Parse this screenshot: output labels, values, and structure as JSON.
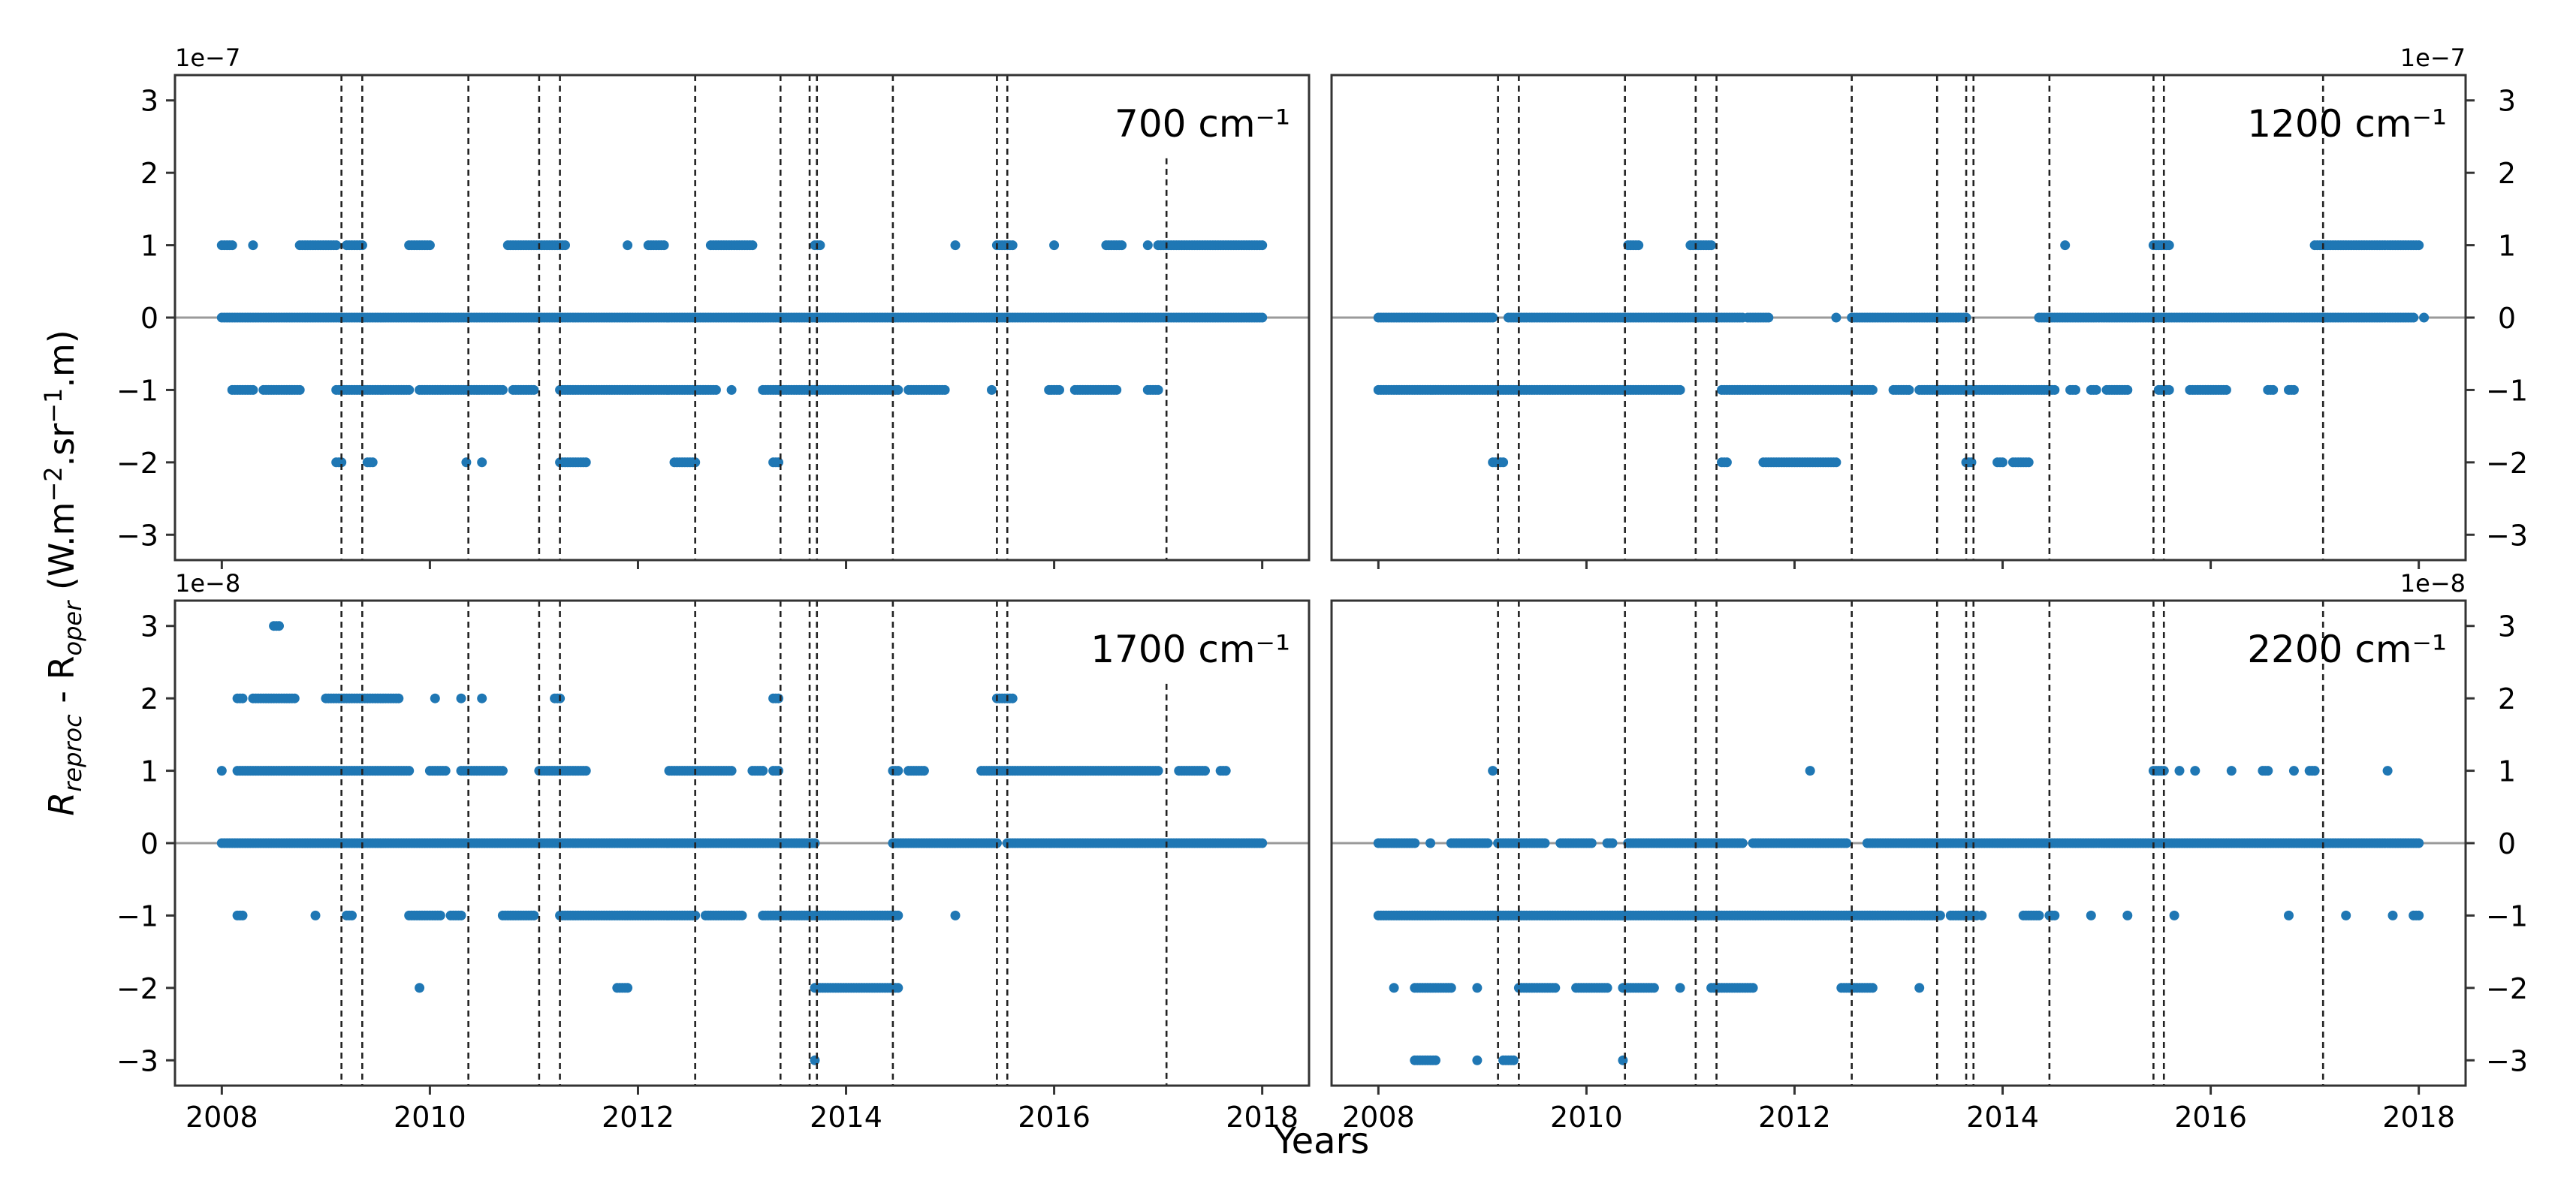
{
  "figure": {
    "xlabel": "Years",
    "ylabel_main": "R",
    "ylabel_sub1": "reproc",
    "ylabel_mid": " - R",
    "ylabel_sub2": "oper",
    "ylabel_units_1": " (W.m",
    "ylabel_sup1": "−2",
    "ylabel_units_2": ".sr",
    "ylabel_sup2": "−1",
    "ylabel_units_3": ".m)",
    "marker_color": "#1f77b4",
    "event_years": [
      2009.15,
      2009.35,
      2010.37,
      2011.05,
      2011.25,
      2012.55,
      2013.37,
      2013.65,
      2013.72,
      2014.45,
      2015.45,
      2015.55,
      2017.08
    ]
  },
  "chart_data": [
    {
      "type": "scatter",
      "title": "700 cm⁻¹",
      "exponent": "1e−7",
      "xlim": [
        2007.55,
        2018.45
      ],
      "ylim": [
        -3.35,
        3.35
      ],
      "xticks": [
        "2008",
        "2010",
        "2012",
        "2014",
        "2016",
        "2018"
      ],
      "yticks": [
        "3",
        "2",
        "1",
        "0",
        "−1",
        "−2",
        "−3"
      ],
      "levels": [
        {
          "y": 1,
          "ranges": [
            [
              2008.0,
              2008.1
            ],
            [
              2008.3,
              2008.3
            ],
            [
              2008.75,
              2009.1
            ],
            [
              2009.2,
              2009.35
            ],
            [
              2009.8,
              2010.0
            ],
            [
              2010.75,
              2011.3
            ],
            [
              2011.9,
              2011.9
            ],
            [
              2012.1,
              2012.25
            ],
            [
              2012.7,
              2013.1
            ],
            [
              2013.7,
              2013.75
            ],
            [
              2015.05,
              2015.05
            ],
            [
              2015.45,
              2015.6
            ],
            [
              2016.0,
              2016.0
            ],
            [
              2016.5,
              2016.65
            ],
            [
              2016.9,
              2016.9
            ],
            [
              2017.0,
              2018.0
            ]
          ]
        },
        {
          "y": 0,
          "ranges": [
            [
              2008.0,
              2018.0
            ]
          ]
        },
        {
          "y": -1,
          "ranges": [
            [
              2008.1,
              2008.3
            ],
            [
              2008.4,
              2008.75
            ],
            [
              2009.1,
              2009.8
            ],
            [
              2009.9,
              2010.7
            ],
            [
              2010.8,
              2011.0
            ],
            [
              2011.25,
              2012.75
            ],
            [
              2012.9,
              2012.9
            ],
            [
              2013.2,
              2014.5
            ],
            [
              2014.6,
              2014.95
            ],
            [
              2015.4,
              2015.4
            ],
            [
              2015.95,
              2016.05
            ],
            [
              2016.2,
              2016.6
            ],
            [
              2016.9,
              2017.0
            ]
          ]
        },
        {
          "y": -2,
          "ranges": [
            [
              2009.1,
              2009.15
            ],
            [
              2009.4,
              2009.45
            ],
            [
              2010.35,
              2010.35
            ],
            [
              2010.5,
              2010.5
            ],
            [
              2011.25,
              2011.5
            ],
            [
              2012.35,
              2012.55
            ],
            [
              2013.3,
              2013.35
            ]
          ]
        }
      ]
    },
    {
      "type": "scatter",
      "title": "1200 cm⁻¹",
      "exponent": "1e−7",
      "xlim": [
        2007.55,
        2018.45
      ],
      "ylim": [
        -3.35,
        3.35
      ],
      "xticks": [
        "2008",
        "2010",
        "2012",
        "2014",
        "2016",
        "2018"
      ],
      "yticks": [
        "3",
        "2",
        "1",
        "0",
        "−1",
        "−2",
        "−3"
      ],
      "levels": [
        {
          "y": 1,
          "ranges": [
            [
              2010.4,
              2010.5
            ],
            [
              2011.0,
              2011.2
            ],
            [
              2014.6,
              2014.6
            ],
            [
              2015.45,
              2015.6
            ],
            [
              2017.0,
              2018.0
            ]
          ]
        },
        {
          "y": 0,
          "ranges": [
            [
              2008.0,
              2009.1
            ],
            [
              2009.25,
              2011.5
            ],
            [
              2011.55,
              2011.75
            ],
            [
              2012.4,
              2012.4
            ],
            [
              2012.55,
              2013.65
            ],
            [
              2014.35,
              2017.95
            ],
            [
              2018.05,
              2018.05
            ]
          ]
        },
        {
          "y": -1,
          "ranges": [
            [
              2008.0,
              2010.9
            ],
            [
              2011.3,
              2012.75
            ],
            [
              2012.95,
              2013.1
            ],
            [
              2013.2,
              2014.5
            ],
            [
              2014.65,
              2014.7
            ],
            [
              2014.85,
              2014.9
            ],
            [
              2015.0,
              2015.2
            ],
            [
              2015.5,
              2015.6
            ],
            [
              2015.8,
              2016.15
            ],
            [
              2016.55,
              2016.6
            ],
            [
              2016.75,
              2016.8
            ]
          ]
        },
        {
          "y": -2,
          "ranges": [
            [
              2009.1,
              2009.2
            ],
            [
              2011.3,
              2011.35
            ],
            [
              2011.7,
              2012.4
            ],
            [
              2013.65,
              2013.7
            ],
            [
              2013.95,
              2014.0
            ],
            [
              2014.1,
              2014.25
            ]
          ]
        }
      ]
    },
    {
      "type": "scatter",
      "title": "1700 cm⁻¹",
      "exponent": "1e−8",
      "xlim": [
        2007.55,
        2018.45
      ],
      "ylim": [
        -3.35,
        3.35
      ],
      "xticks": [
        "2008",
        "2010",
        "2012",
        "2014",
        "2016",
        "2018"
      ],
      "yticks": [
        "3",
        "2",
        "1",
        "0",
        "−1",
        "−2",
        "−3"
      ],
      "levels": [
        {
          "y": 3,
          "ranges": [
            [
              2008.5,
              2008.55
            ]
          ]
        },
        {
          "y": 2,
          "ranges": [
            [
              2008.15,
              2008.2
            ],
            [
              2008.3,
              2008.7
            ],
            [
              2009.0,
              2009.7
            ],
            [
              2010.05,
              2010.05
            ],
            [
              2010.3,
              2010.3
            ],
            [
              2010.5,
              2010.5
            ],
            [
              2011.2,
              2011.25
            ],
            [
              2013.3,
              2013.35
            ],
            [
              2015.45,
              2015.6
            ]
          ]
        },
        {
          "y": 1,
          "ranges": [
            [
              2008.0,
              2008.0
            ],
            [
              2008.15,
              2009.8
            ],
            [
              2010.0,
              2010.15
            ],
            [
              2010.3,
              2010.7
            ],
            [
              2011.05,
              2011.5
            ],
            [
              2012.3,
              2012.9
            ],
            [
              2013.1,
              2013.2
            ],
            [
              2013.3,
              2013.35
            ],
            [
              2014.45,
              2014.5
            ],
            [
              2014.6,
              2014.75
            ],
            [
              2015.3,
              2017.0
            ],
            [
              2017.2,
              2017.45
            ],
            [
              2017.6,
              2017.65
            ]
          ]
        },
        {
          "y": 0,
          "ranges": [
            [
              2008.0,
              2013.7
            ],
            [
              2014.45,
              2015.45
            ],
            [
              2015.55,
              2018.0
            ]
          ]
        },
        {
          "y": -1,
          "ranges": [
            [
              2008.15,
              2008.2
            ],
            [
              2008.9,
              2008.9
            ],
            [
              2009.2,
              2009.25
            ],
            [
              2009.8,
              2010.1
            ],
            [
              2010.2,
              2010.3
            ],
            [
              2010.7,
              2011.0
            ],
            [
              2011.25,
              2012.55
            ],
            [
              2012.65,
              2013.0
            ],
            [
              2013.2,
              2014.5
            ],
            [
              2015.05,
              2015.05
            ]
          ]
        },
        {
          "y": -2,
          "ranges": [
            [
              2009.9,
              2009.9
            ],
            [
              2011.8,
              2011.9
            ],
            [
              2013.7,
              2014.5
            ]
          ]
        },
        {
          "y": -3,
          "ranges": [
            [
              2013.7,
              2013.7
            ]
          ]
        }
      ]
    },
    {
      "type": "scatter",
      "title": "2200 cm⁻¹",
      "exponent": "1e−8",
      "xlim": [
        2007.55,
        2018.45
      ],
      "ylim": [
        -3.35,
        3.35
      ],
      "xticks": [
        "2008",
        "2010",
        "2012",
        "2014",
        "2016",
        "2018"
      ],
      "yticks": [
        "3",
        "2",
        "1",
        "0",
        "−1",
        "−2",
        "−3"
      ],
      "levels": [
        {
          "y": 1,
          "ranges": [
            [
              2009.1,
              2009.1
            ],
            [
              2012.15,
              2012.15
            ],
            [
              2015.45,
              2015.55
            ],
            [
              2015.7,
              2015.7
            ],
            [
              2015.85,
              2015.85
            ],
            [
              2016.2,
              2016.2
            ],
            [
              2016.5,
              2016.55
            ],
            [
              2016.8,
              2016.8
            ],
            [
              2016.95,
              2017.0
            ],
            [
              2017.7,
              2017.7
            ]
          ]
        },
        {
          "y": 0,
          "ranges": [
            [
              2008.0,
              2008.35
            ],
            [
              2008.5,
              2008.5
            ],
            [
              2008.7,
              2009.05
            ],
            [
              2009.15,
              2009.6
            ],
            [
              2009.75,
              2010.05
            ],
            [
              2010.2,
              2010.25
            ],
            [
              2010.4,
              2011.5
            ],
            [
              2011.6,
              2012.5
            ],
            [
              2012.7,
              2018.0
            ]
          ]
        },
        {
          "y": -1,
          "ranges": [
            [
              2008.0,
              2013.4
            ],
            [
              2013.5,
              2013.75
            ],
            [
              2013.8,
              2013.8
            ],
            [
              2014.2,
              2014.35
            ],
            [
              2014.45,
              2014.5
            ],
            [
              2014.85,
              2014.85
            ],
            [
              2015.2,
              2015.2
            ],
            [
              2015.65,
              2015.65
            ],
            [
              2016.75,
              2016.75
            ],
            [
              2017.3,
              2017.3
            ],
            [
              2017.75,
              2017.75
            ],
            [
              2017.95,
              2018.0
            ]
          ]
        },
        {
          "y": -2,
          "ranges": [
            [
              2008.15,
              2008.15
            ],
            [
              2008.35,
              2008.7
            ],
            [
              2008.95,
              2008.95
            ],
            [
              2009.35,
              2009.7
            ],
            [
              2009.9,
              2010.2
            ],
            [
              2010.35,
              2010.65
            ],
            [
              2010.9,
              2010.9
            ],
            [
              2011.2,
              2011.6
            ],
            [
              2012.45,
              2012.75
            ],
            [
              2013.2,
              2013.2
            ]
          ]
        },
        {
          "y": -3,
          "ranges": [
            [
              2008.35,
              2008.55
            ],
            [
              2008.95,
              2008.95
            ],
            [
              2009.2,
              2009.3
            ],
            [
              2010.35,
              2010.35
            ]
          ]
        }
      ]
    }
  ]
}
